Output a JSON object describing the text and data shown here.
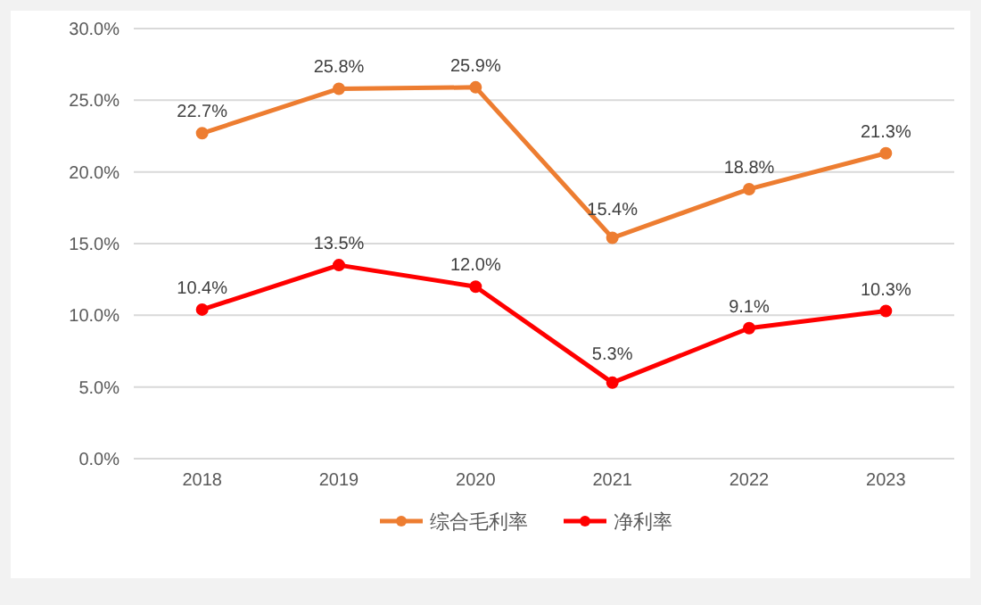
{
  "chart_data": {
    "type": "line",
    "categories": [
      "2018",
      "2019",
      "2020",
      "2021",
      "2022",
      "2023"
    ],
    "series": [
      {
        "name": "综合毛利率",
        "color": "#ed7d31",
        "values": [
          22.7,
          25.8,
          25.9,
          15.4,
          18.8,
          21.3
        ],
        "value_labels": [
          "22.7%",
          "25.8%",
          "25.9%",
          "15.4%",
          "18.8%",
          "21.3%"
        ]
      },
      {
        "name": "净利率",
        "color": "#ff0000",
        "values": [
          10.4,
          13.5,
          12.0,
          5.3,
          9.1,
          10.3
        ],
        "value_labels": [
          "10.4%",
          "13.5%",
          "12.0%",
          "5.3%",
          "9.1%",
          "10.3%"
        ]
      }
    ],
    "ylim": [
      0,
      30
    ],
    "yticks": [
      {
        "value": 0,
        "label": "0.0%"
      },
      {
        "value": 5,
        "label": "5.0%"
      },
      {
        "value": 10,
        "label": "10.0%"
      },
      {
        "value": 15,
        "label": "15.0%"
      },
      {
        "value": 20,
        "label": "20.0%"
      },
      {
        "value": 25,
        "label": "25.0%"
      },
      {
        "value": 30,
        "label": "30.0%"
      }
    ],
    "grid": "y",
    "legend": "bottom",
    "marker": "circle",
    "line_style": "solid"
  }
}
